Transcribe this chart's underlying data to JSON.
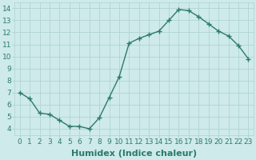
{
  "x": [
    0,
    1,
    2,
    3,
    4,
    5,
    6,
    7,
    8,
    9,
    10,
    11,
    12,
    13,
    14,
    15,
    16,
    17,
    18,
    19,
    20,
    21,
    22,
    23
  ],
  "y": [
    7.0,
    6.5,
    5.3,
    5.2,
    4.7,
    4.2,
    4.2,
    4.0,
    4.9,
    6.6,
    8.3,
    11.1,
    11.5,
    11.8,
    12.1,
    13.0,
    13.9,
    13.8,
    13.3,
    12.7,
    12.1,
    11.7,
    10.9,
    9.8
  ],
  "line_color": "#2d7a6a",
  "marker": "+",
  "bg_color": "#ceeaea",
  "grid_color": "#b0d4d4",
  "xlabel": "Humidex (Indice chaleur)",
  "xlim": [
    -0.5,
    23.5
  ],
  "ylim": [
    3.5,
    14.5
  ],
  "yticks": [
    4,
    5,
    6,
    7,
    8,
    9,
    10,
    11,
    12,
    13,
    14
  ],
  "xticks": [
    0,
    1,
    2,
    3,
    4,
    5,
    6,
    7,
    8,
    9,
    10,
    11,
    12,
    13,
    14,
    15,
    16,
    17,
    18,
    19,
    20,
    21,
    22,
    23
  ],
  "tick_label_color": "#2d7a6a",
  "xlabel_color": "#2d7a6a",
  "xlabel_fontsize": 8,
  "tick_fontsize": 6.5,
  "linewidth": 1.0,
  "markersize": 4,
  "markeredgewidth": 1.0
}
